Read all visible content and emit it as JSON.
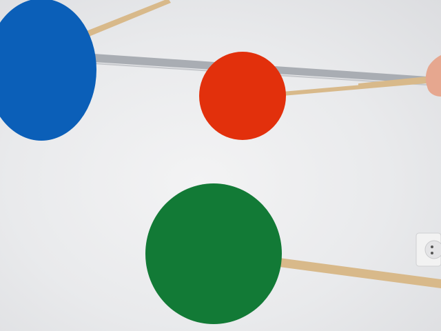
{
  "scene": {
    "colors": {
      "wall": "#e9eaec",
      "rail": "#a9adb3",
      "blue_disc": "#0b5fb8",
      "red_disc": "#e2300c",
      "green_disc": "#127a36",
      "stick": "#d8b98a",
      "hand": "#e6a78f",
      "outlet": "#f2f2f2"
    },
    "objects": [
      {
        "name": "blue-disc",
        "kind": "disc",
        "color": "blue"
      },
      {
        "name": "red-disc",
        "kind": "disc",
        "color": "red"
      },
      {
        "name": "green-disc",
        "kind": "disc",
        "color": "green"
      },
      {
        "name": "wooden-stick",
        "kind": "stick",
        "count": 3
      },
      {
        "name": "wall-rail",
        "kind": "rail"
      },
      {
        "name": "power-outlet",
        "kind": "outlet"
      },
      {
        "name": "hand",
        "kind": "hand"
      }
    ]
  }
}
